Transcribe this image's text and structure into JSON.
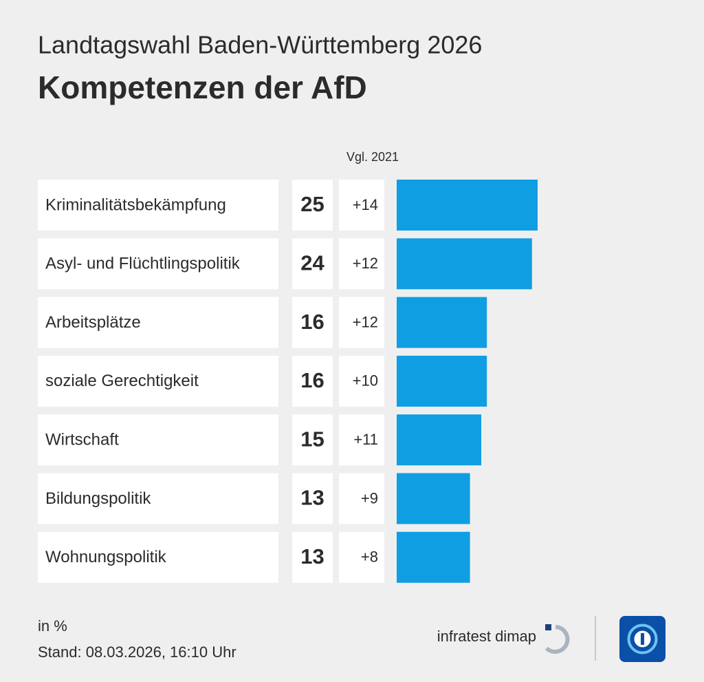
{
  "chart_data": {
    "type": "bar",
    "subtitle": "Landtagswahl Baden-Württemberg 2026",
    "title": "Kompetenzen der AfD",
    "categories": [
      "Kriminalitätsbekämpfung",
      "Asyl- und Flüchtlingspolitik",
      "Arbeitsplätze",
      "soziale Gerechtigkeit",
      "Wirtschaft",
      "Bildungspolitik",
      "Wohnungspolitik"
    ],
    "values": [
      25,
      24,
      16,
      16,
      15,
      13,
      13
    ],
    "color": "#0f9ee2",
    "change": {
      "header": "Vgl. 2021",
      "values": [
        14,
        12,
        12,
        10,
        11,
        9,
        8
      ],
      "value_labels": [
        "+14",
        "+12",
        "+12",
        "+10",
        "+11",
        "+9",
        "+8"
      ]
    },
    "unit_note": "in %",
    "date_note": "Stand:  08.03.2026, 16:10 Uhr",
    "source": "infratest dimap"
  }
}
